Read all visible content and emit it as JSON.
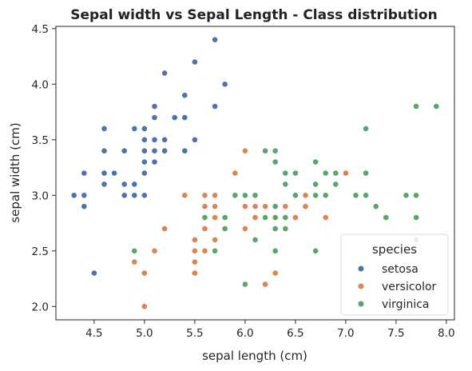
{
  "chart_data": {
    "type": "scatter",
    "title": "Sepal width vs Sepal Length - Class distribution",
    "xlabel": "sepal length (cm)",
    "ylabel": "sepal width (cm)",
    "xlim": [
      4.12,
      8.08
    ],
    "ylim": [
      1.88,
      4.52
    ],
    "xticks": [
      4.5,
      5.0,
      5.5,
      6.0,
      6.5,
      7.0,
      7.5,
      8.0
    ],
    "xtick_labels": [
      "4.5",
      "5.0",
      "5.5",
      "6.0",
      "6.5",
      "7.0",
      "7.5",
      "8.0"
    ],
    "yticks": [
      2.0,
      2.5,
      3.0,
      3.5,
      4.0,
      4.5
    ],
    "ytick_labels": [
      "2.0",
      "2.5",
      "3.0",
      "3.5",
      "4.0",
      "4.5"
    ],
    "grid": false,
    "legend": {
      "title": "species",
      "position": "lower right"
    },
    "series": [
      {
        "name": "setosa",
        "color": "#4c72b0",
        "points": [
          [
            4.3,
            3.0
          ],
          [
            4.4,
            3.0
          ],
          [
            4.4,
            3.2
          ],
          [
            4.4,
            2.9
          ],
          [
            4.5,
            2.3
          ],
          [
            4.6,
            3.6
          ],
          [
            4.6,
            3.4
          ],
          [
            4.6,
            3.2
          ],
          [
            4.6,
            3.1
          ],
          [
            4.7,
            3.2
          ],
          [
            4.8,
            3.4
          ],
          [
            4.8,
            3.1
          ],
          [
            4.8,
            3.0
          ],
          [
            4.9,
            3.6
          ],
          [
            4.9,
            3.1
          ],
          [
            4.9,
            3.0
          ],
          [
            5.0,
            3.6
          ],
          [
            5.0,
            3.5
          ],
          [
            5.0,
            3.4
          ],
          [
            5.0,
            3.3
          ],
          [
            5.0,
            3.2
          ],
          [
            5.0,
            3.0
          ],
          [
            5.1,
            3.8
          ],
          [
            5.1,
            3.7
          ],
          [
            5.1,
            3.5
          ],
          [
            5.1,
            3.4
          ],
          [
            5.1,
            3.3
          ],
          [
            5.2,
            4.1
          ],
          [
            5.2,
            3.5
          ],
          [
            5.2,
            3.4
          ],
          [
            5.3,
            3.7
          ],
          [
            5.4,
            3.9
          ],
          [
            5.4,
            3.7
          ],
          [
            5.4,
            3.4
          ],
          [
            5.5,
            4.2
          ],
          [
            5.5,
            3.5
          ],
          [
            5.7,
            4.4
          ],
          [
            5.7,
            3.8
          ],
          [
            5.8,
            4.0
          ]
        ]
      },
      {
        "name": "versicolor",
        "color": "#dd8452",
        "points": [
          [
            4.9,
            2.4
          ],
          [
            5.0,
            2.3
          ],
          [
            5.0,
            2.0
          ],
          [
            5.1,
            2.5
          ],
          [
            5.2,
            2.7
          ],
          [
            5.4,
            3.0
          ],
          [
            5.5,
            2.6
          ],
          [
            5.5,
            2.5
          ],
          [
            5.5,
            2.4
          ],
          [
            5.5,
            2.3
          ],
          [
            5.6,
            3.0
          ],
          [
            5.6,
            2.9
          ],
          [
            5.6,
            2.7
          ],
          [
            5.6,
            2.5
          ],
          [
            5.7,
            3.0
          ],
          [
            5.7,
            2.9
          ],
          [
            5.7,
            2.8
          ],
          [
            5.7,
            2.6
          ],
          [
            5.8,
            2.7
          ],
          [
            5.9,
            3.2
          ],
          [
            6.0,
            3.4
          ],
          [
            6.0,
            2.9
          ],
          [
            6.0,
            2.7
          ],
          [
            6.1,
            3.0
          ],
          [
            6.1,
            2.9
          ],
          [
            6.1,
            2.8
          ],
          [
            6.2,
            2.9
          ],
          [
            6.2,
            2.2
          ],
          [
            6.3,
            3.3
          ],
          [
            6.3,
            2.5
          ],
          [
            6.3,
            2.3
          ],
          [
            6.4,
            3.2
          ],
          [
            6.4,
            2.9
          ],
          [
            6.5,
            2.8
          ],
          [
            6.6,
            3.0
          ],
          [
            6.6,
            2.9
          ],
          [
            6.7,
            3.1
          ],
          [
            6.8,
            2.8
          ],
          [
            7.0,
            3.2
          ]
        ]
      },
      {
        "name": "virginica",
        "color": "#55a868",
        "points": [
          [
            4.9,
            2.5
          ],
          [
            5.6,
            2.8
          ],
          [
            5.7,
            2.5
          ],
          [
            5.8,
            2.8
          ],
          [
            5.8,
            2.7
          ],
          [
            5.9,
            3.0
          ],
          [
            6.0,
            3.0
          ],
          [
            6.0,
            2.2
          ],
          [
            6.1,
            3.0
          ],
          [
            6.1,
            2.6
          ],
          [
            6.2,
            3.4
          ],
          [
            6.2,
            2.8
          ],
          [
            6.3,
            3.4
          ],
          [
            6.3,
            3.3
          ],
          [
            6.3,
            2.9
          ],
          [
            6.3,
            2.8
          ],
          [
            6.3,
            2.7
          ],
          [
            6.3,
            2.5
          ],
          [
            6.4,
            3.2
          ],
          [
            6.4,
            3.1
          ],
          [
            6.4,
            2.8
          ],
          [
            6.4,
            2.7
          ],
          [
            6.5,
            3.2
          ],
          [
            6.5,
            3.0
          ],
          [
            6.7,
            3.3
          ],
          [
            6.7,
            3.1
          ],
          [
            6.7,
            3.0
          ],
          [
            6.7,
            2.5
          ],
          [
            6.8,
            3.2
          ],
          [
            6.8,
            3.0
          ],
          [
            6.9,
            3.2
          ],
          [
            6.9,
            3.1
          ],
          [
            7.1,
            3.0
          ],
          [
            7.2,
            3.6
          ],
          [
            7.2,
            3.2
          ],
          [
            7.2,
            3.0
          ],
          [
            7.3,
            2.9
          ],
          [
            7.4,
            2.8
          ],
          [
            7.6,
            3.0
          ],
          [
            7.7,
            3.8
          ],
          [
            7.7,
            3.0
          ],
          [
            7.7,
            2.8
          ],
          [
            7.7,
            2.6
          ],
          [
            7.9,
            3.8
          ]
        ]
      }
    ]
  }
}
